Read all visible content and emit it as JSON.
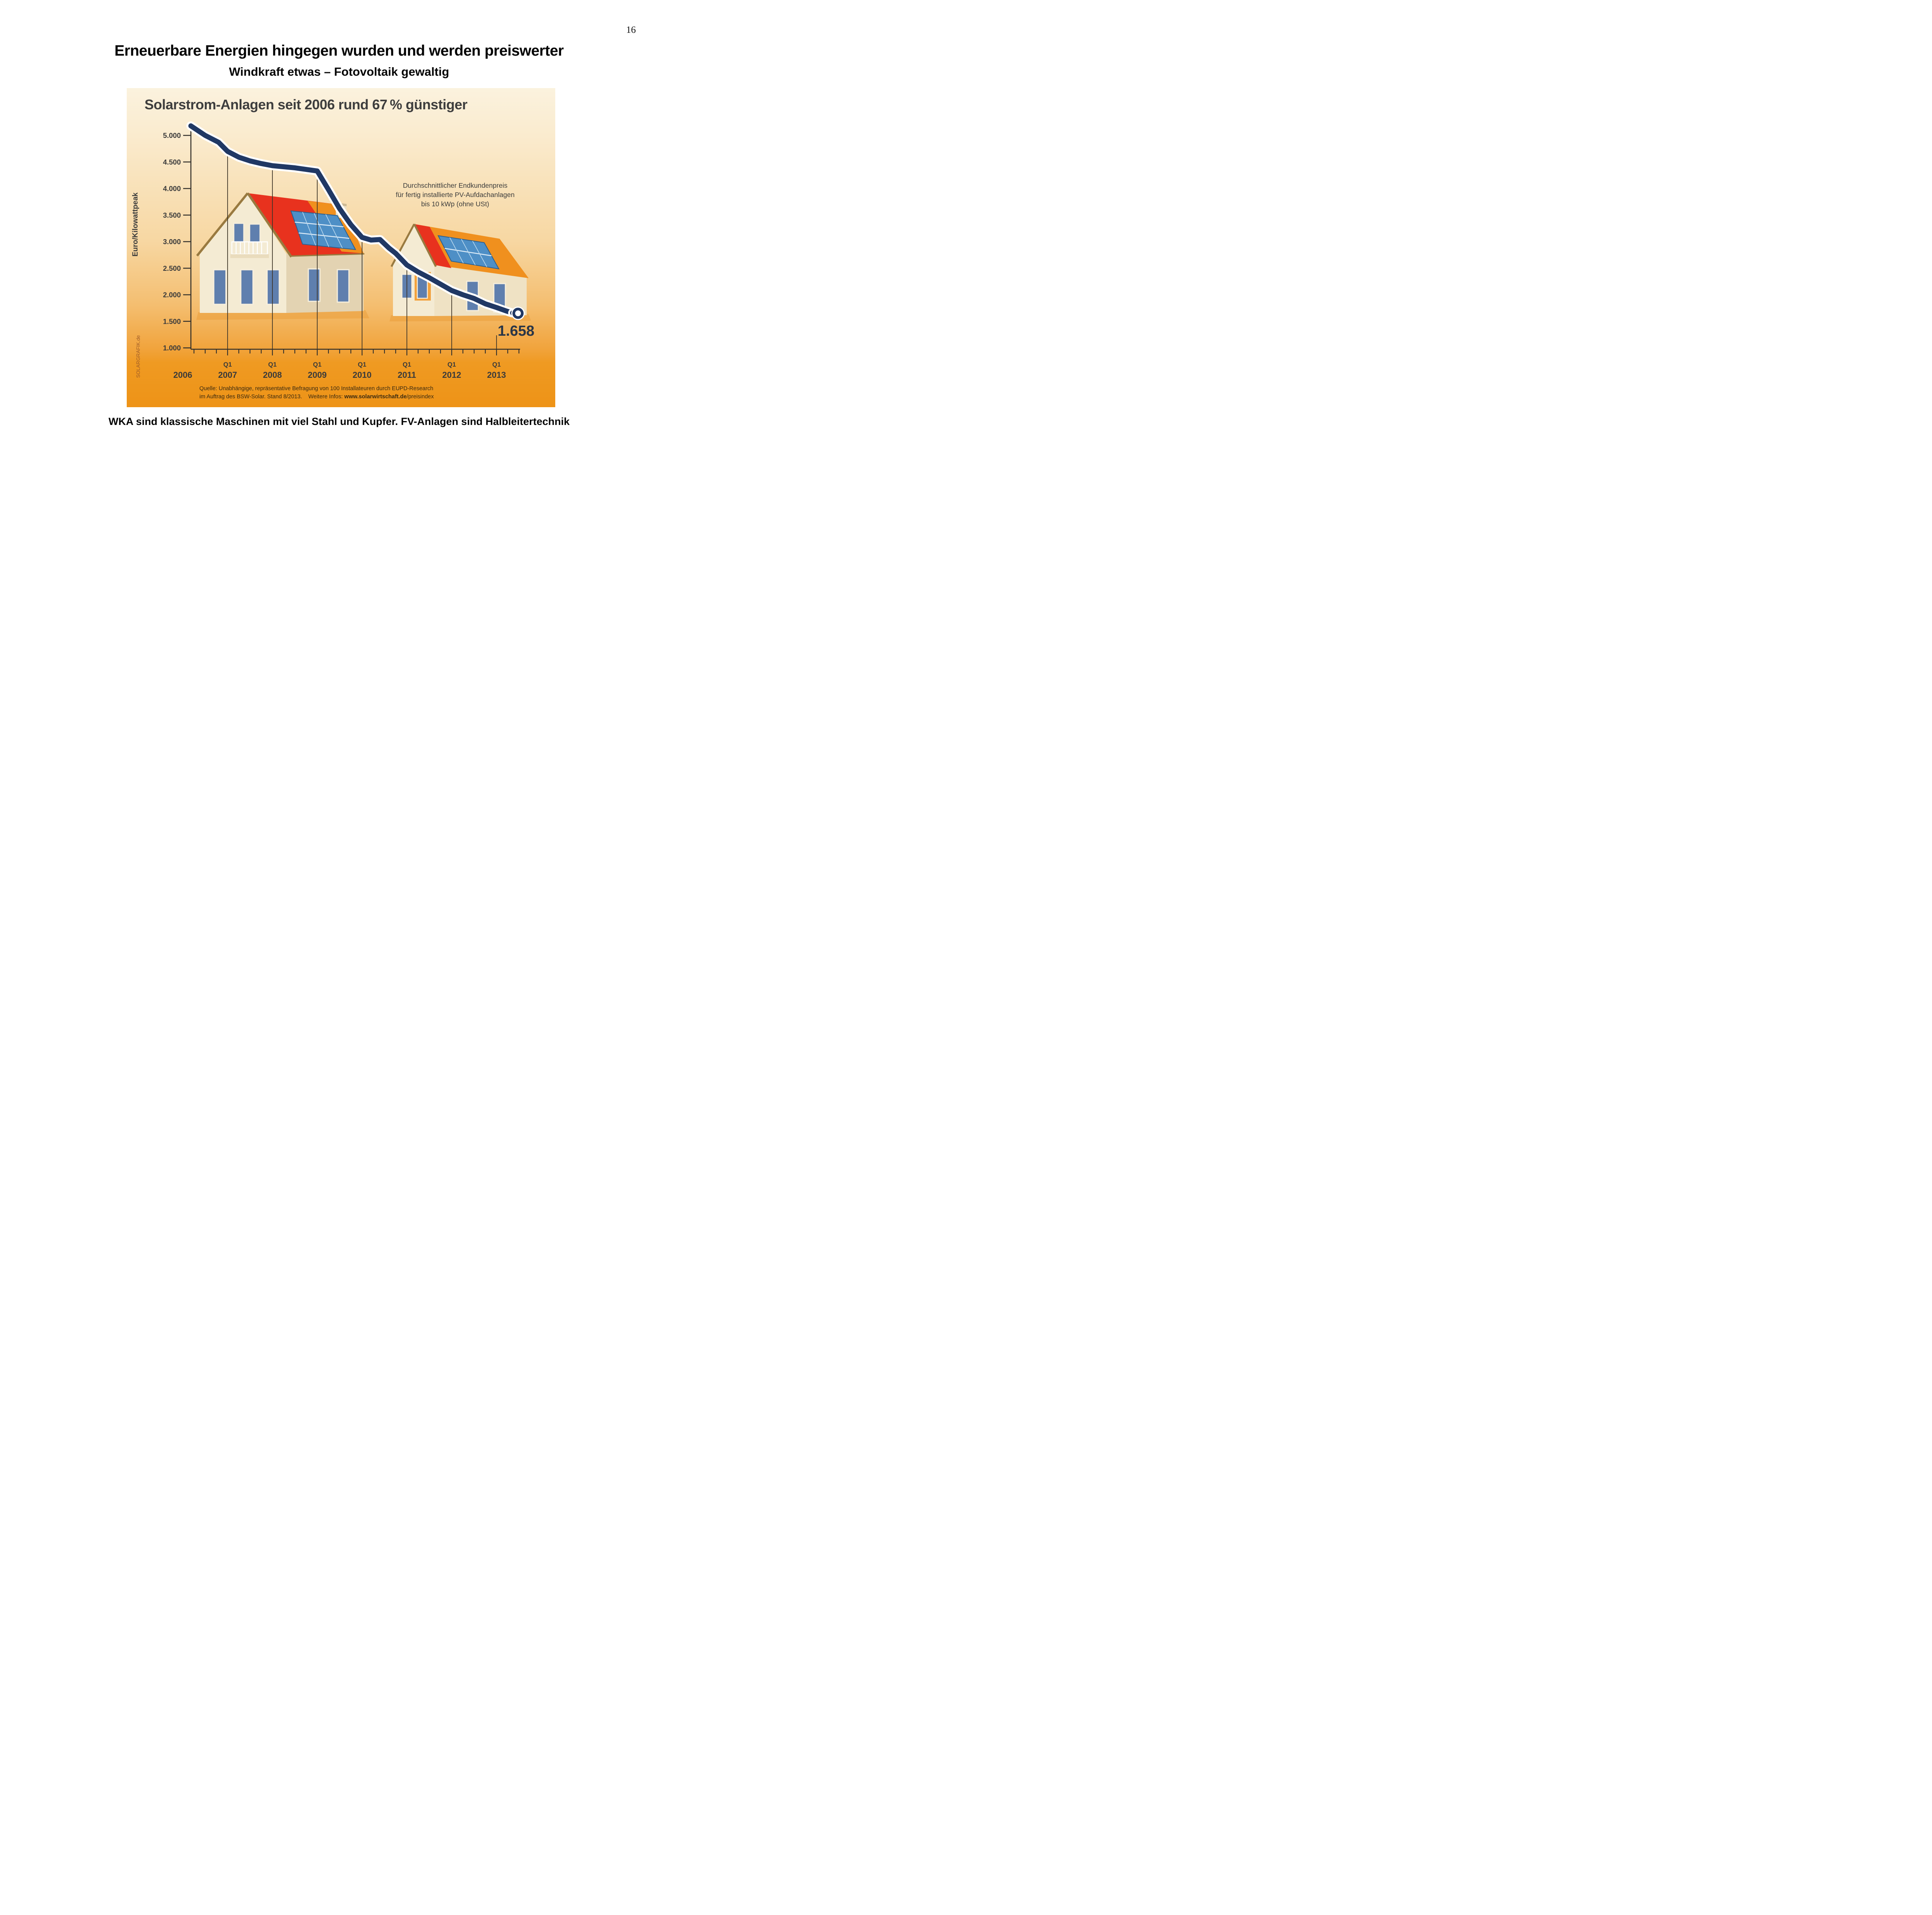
{
  "page": {
    "number": "16",
    "title": "Erneuerbare Energien hingegen wurden und werden preiswerter",
    "subtitle": "Windkraft etwas – Fotovoltaik gewaltig",
    "footer": "WKA sind klassische Maschinen mit viel Stahl und Kupfer. FV-Anlagen sind Halbleitertechnik"
  },
  "chart": {
    "title": "Solarstrom-Anlagen seit 2006 rund 67 % günstiger",
    "y_axis_title": "Euro/Kilowattpeak",
    "annotation_lines": [
      "Durchschnittlicher Endkundenpreis",
      "für fertig installierte  PV-Aufdachanlagen",
      "bis 10 kWp (ohne USt)"
    ],
    "end_label": "1.658",
    "watermark": "SOLARGRAFIK.de",
    "source_line1": "Quelle: Unabhängige, repräsentative Befragung von 100 Installateuren durch EUPD-Research",
    "source_line2_prefix": "im Auftrag des BSW-Solar. Stand 8/2013.    Weitere Infos: ",
    "source_line2_url": "www.solarwirtschaft.de",
    "source_line2_suffix": "/preisindex",
    "colors": {
      "line_navy": "#203864",
      "line_halo": "#FFFFFF",
      "axis": "#33302B",
      "gridline": "#3E3528",
      "tick_label": "#3A3A3A",
      "end_label": "#2A3647",
      "background_top": "#FBF2DE",
      "background_bottom": "#EE9317",
      "roof_red": "#E8321E",
      "roof_orange": "#F0901E",
      "solar_panel_blue": "#4E8FC6",
      "wall_cream": "#F4EBD3",
      "watermark": "#9E5B28"
    }
  },
  "chart_data": {
    "type": "line",
    "title": "Solarstrom-Anlagen seit 2006 rund 67 % günstiger",
    "xlabel": "",
    "ylabel": "Euro/Kilowattpeak",
    "ylim": [
      1000,
      5000
    ],
    "xlim": [
      2006,
      2013.6
    ],
    "grid": "vertical year lines, quarterly ticks on x-axis",
    "legend_position": "none",
    "ytick_labels": [
      "5.000",
      "4.500",
      "4.000",
      "3.500",
      "3.000",
      "2.500",
      "2.000",
      "1.500",
      "1.000"
    ],
    "ytick_values": [
      5000,
      4500,
      4000,
      3500,
      3000,
      2500,
      2000,
      1500,
      1000
    ],
    "x_year_labels": [
      "2006",
      "2007",
      "2008",
      "2009",
      "2010",
      "2011",
      "2012",
      "2013"
    ],
    "x_year_values": [
      2006,
      2007,
      2008,
      2009,
      2010,
      2011,
      2012,
      2013
    ],
    "q1_label": "Q1",
    "year_gridlines": [
      2007,
      2008,
      2009,
      2010,
      2011,
      2012,
      2013
    ],
    "series_name": "Durchschnittlicher Endkundenpreis (Euro/kWp)",
    "x": [
      2006.18,
      2006.5,
      2006.8,
      2007.0,
      2007.25,
      2007.5,
      2007.75,
      2008.0,
      2008.25,
      2008.5,
      2008.75,
      2009.0,
      2009.25,
      2009.5,
      2009.75,
      2010.0,
      2010.2,
      2010.4,
      2010.6,
      2010.75,
      2011.0,
      2011.25,
      2011.5,
      2011.75,
      2012.0,
      2012.25,
      2012.5,
      2012.75,
      2013.0,
      2013.2,
      2013.35
    ],
    "values": [
      5180,
      5000,
      4870,
      4700,
      4590,
      4520,
      4470,
      4430,
      4410,
      4390,
      4360,
      4330,
      3980,
      3620,
      3320,
      3080,
      3030,
      3040,
      2880,
      2780,
      2560,
      2430,
      2320,
      2200,
      2080,
      2000,
      1930,
      1830,
      1760,
      1700,
      1658
    ],
    "end_value": 1658,
    "end_value_label": "1.658",
    "annotation": "Durchschnittlicher Endkundenpreis für fertig installierte PV-Aufdachanlagen bis 10 kWp (ohne USt)"
  }
}
